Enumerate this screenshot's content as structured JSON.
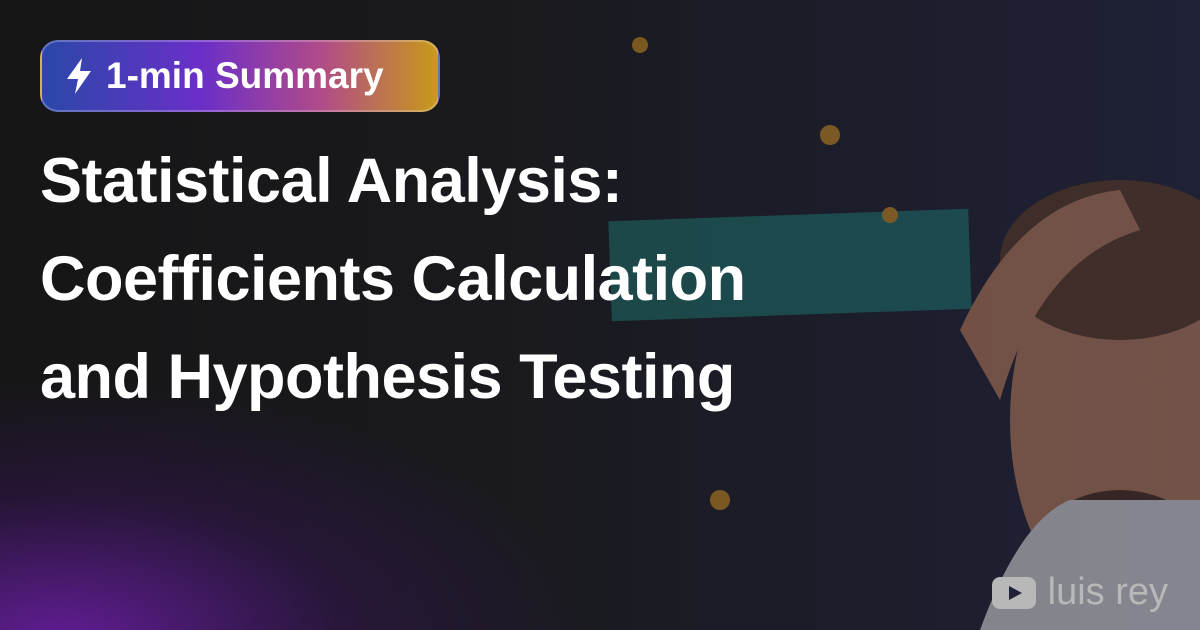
{
  "badge": {
    "text": "1-min Summary"
  },
  "title": {
    "lines": [
      "Statistical Analysis:",
      "Coefficients Calculation",
      "and Hypothesis Testing"
    ]
  },
  "channel": {
    "name": "luis rey"
  }
}
